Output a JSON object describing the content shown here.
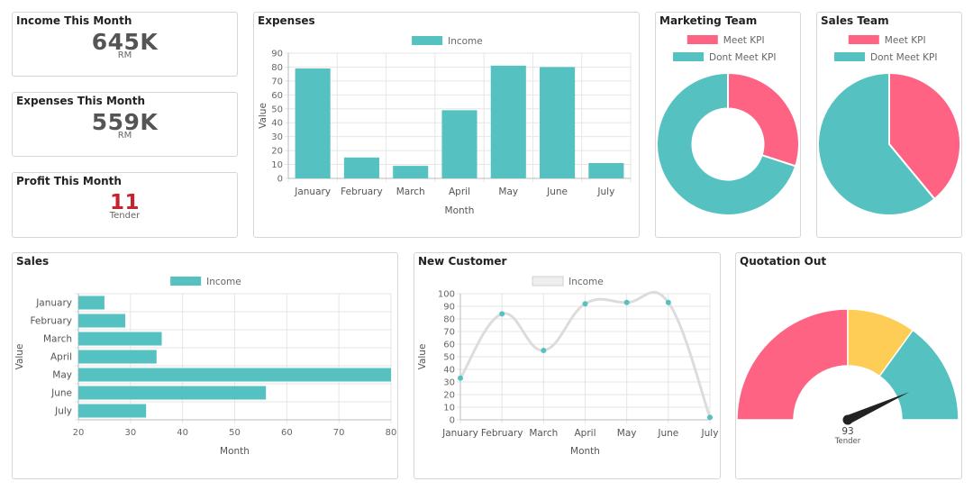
{
  "kpis": {
    "income": {
      "title": "Income This Month",
      "value": "645K",
      "unit": "RM"
    },
    "expenses": {
      "title": "Expenses This Month",
      "value": "559K",
      "unit": "RM"
    },
    "profit": {
      "title": "Profit This Month",
      "value": "11",
      "unit": "Tender"
    }
  },
  "colors": {
    "teal": "#55c1c0",
    "pink": "#fe6383",
    "yellow": "#fecd56",
    "grey": "#dddddd",
    "red": "#c8232c",
    "needle": "#222222"
  },
  "chart_data": [
    {
      "id": "expenses",
      "type": "bar",
      "title": "Expenses",
      "legend": [
        "Income"
      ],
      "categories": [
        "January",
        "February",
        "March",
        "April",
        "May",
        "June",
        "July"
      ],
      "values": [
        79,
        15,
        9,
        49,
        81,
        80,
        11
      ],
      "xlabel": "Month",
      "ylabel": "Value",
      "ylim": [
        0,
        90
      ],
      "ticks": [
        "0",
        "10",
        "20",
        "30",
        "40",
        "50",
        "60",
        "70",
        "80",
        "90"
      ]
    },
    {
      "id": "marketing",
      "type": "pie",
      "title": "Marketing Team",
      "variant": "doughnut",
      "labels": [
        "Meet KPI",
        "Dont Meet KPI"
      ],
      "values": [
        30,
        70
      ]
    },
    {
      "id": "salesteam",
      "type": "pie",
      "title": "Sales Team",
      "labels": [
        "Meet KPI",
        "Dont Meet KPI"
      ],
      "values": [
        39,
        61
      ]
    },
    {
      "id": "sales",
      "type": "bar",
      "orientation": "horizontal",
      "title": "Sales",
      "legend": [
        "Income"
      ],
      "categories": [
        "January",
        "February",
        "March",
        "April",
        "May",
        "June",
        "July"
      ],
      "values": [
        25,
        29,
        36,
        35,
        80,
        56,
        33
      ],
      "xlabel": "Month",
      "ylabel": "Value",
      "xlim": [
        20,
        80
      ],
      "ticks": [
        "20",
        "30",
        "40",
        "50",
        "60",
        "70",
        "80"
      ]
    },
    {
      "id": "customer",
      "type": "line",
      "title": "New Customer",
      "legend": [
        "Income"
      ],
      "categories": [
        "January",
        "February",
        "March",
        "April",
        "May",
        "June",
        "July"
      ],
      "values": [
        33,
        84,
        55,
        92,
        93,
        93,
        2
      ],
      "xlabel": "Month",
      "ylabel": "Value",
      "ylim": [
        0,
        100
      ],
      "ticks": [
        "0",
        "10",
        "20",
        "30",
        "40",
        "50",
        "60",
        "70",
        "80",
        "90",
        "100"
      ]
    },
    {
      "id": "quotation",
      "type": "gauge",
      "title": "Quotation Out",
      "segments": [
        50,
        20,
        30
      ],
      "value": 93,
      "value_label": "93",
      "unit": "Tender"
    }
  ]
}
